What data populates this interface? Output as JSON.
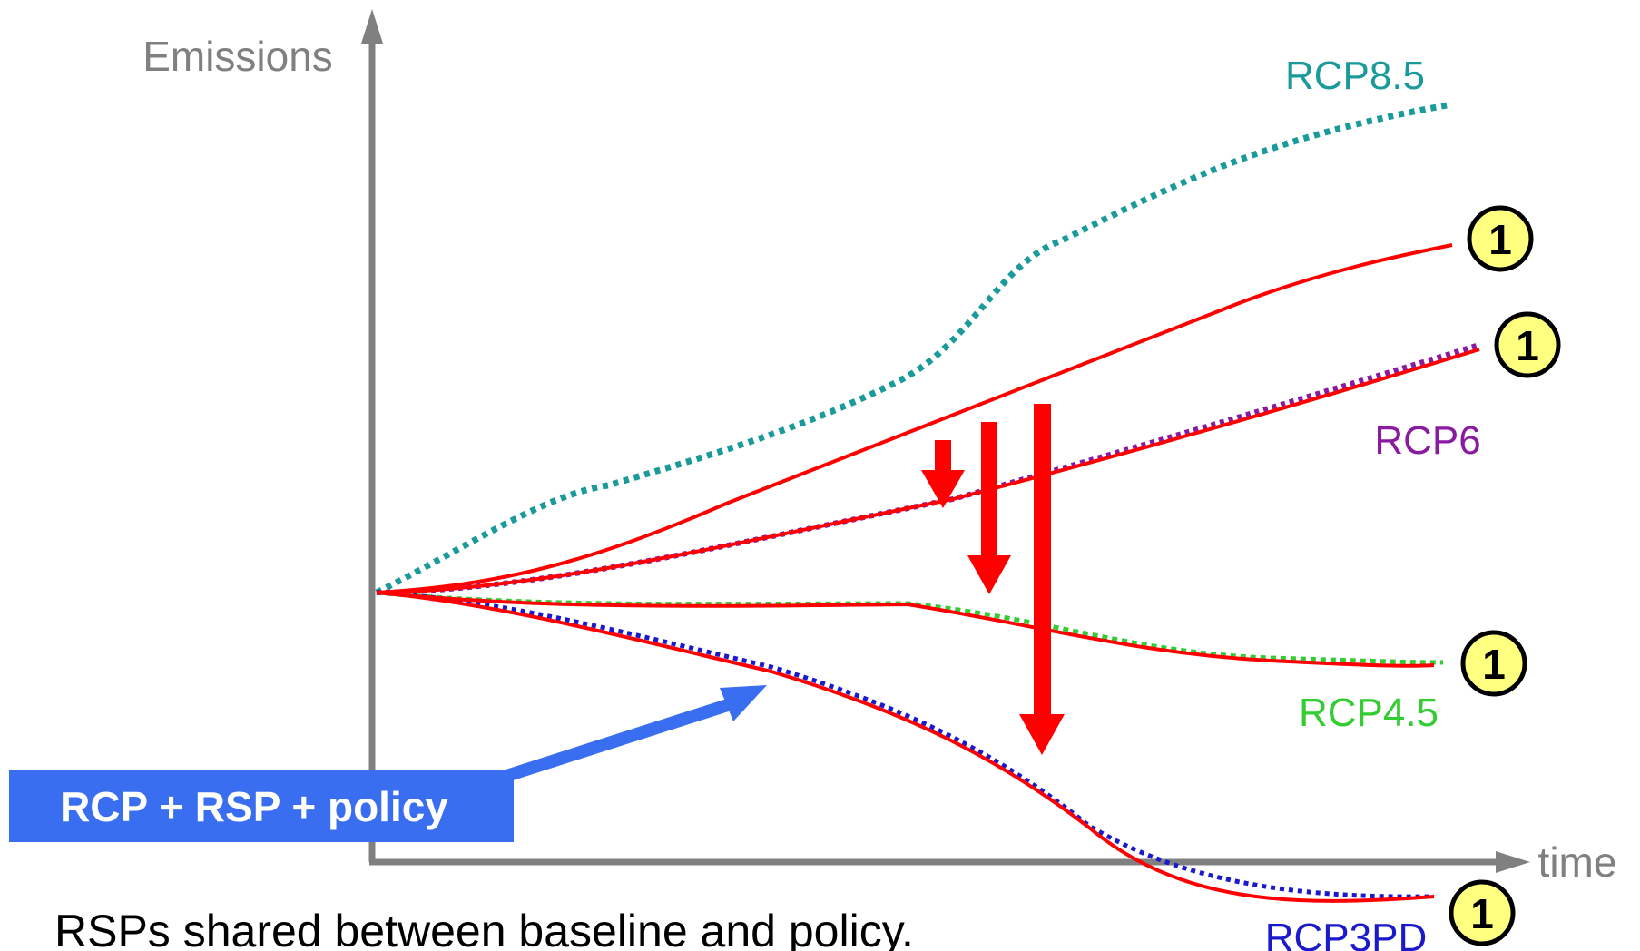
{
  "axes": {
    "y_label": "Emissions",
    "x_label": "time",
    "axis_color": "#808080"
  },
  "colors": {
    "rcp85": "#1a9a9a",
    "rcp6": "#8a1aa0",
    "rcp45": "#33cc33",
    "rcp3pd": "#1a1acc",
    "policy": "#ff0000",
    "callout_bg": "#3a6ef0",
    "badge_fill": "#ffff80"
  },
  "series_labels": {
    "rcp85": "RCP8.5",
    "rcp6": "RCP6",
    "rcp45": "RCP4.5",
    "rcp3pd": "RCP3PD"
  },
  "badges": [
    "1",
    "1",
    "1",
    "1"
  ],
  "callout": {
    "label": "RCP + RSP + policy"
  },
  "caption": "RSPs shared between baseline and policy."
}
